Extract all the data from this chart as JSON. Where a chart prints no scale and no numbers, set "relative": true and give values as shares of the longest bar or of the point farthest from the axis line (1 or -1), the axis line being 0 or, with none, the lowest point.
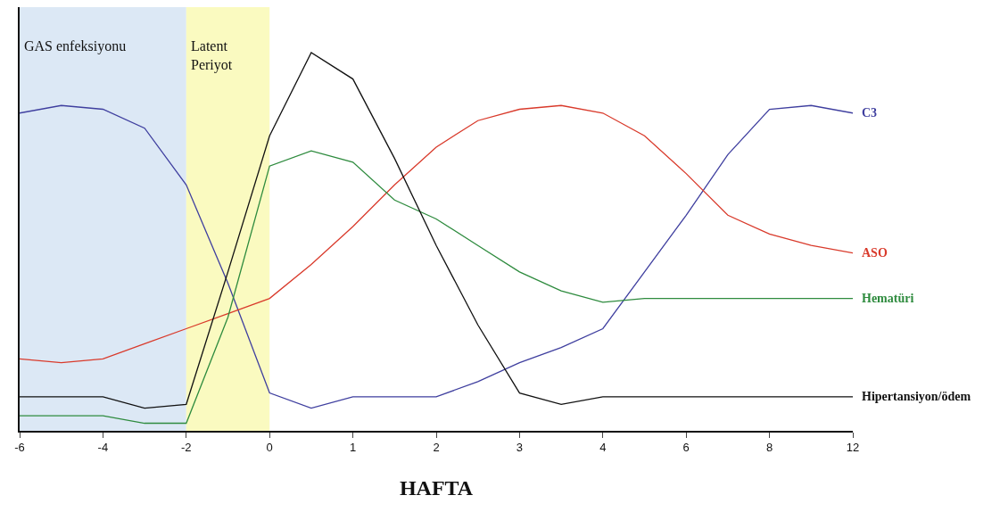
{
  "chart_data": {
    "type": "line",
    "relative": true,
    "xlabel": "HAFTA",
    "categories": [
      "-6",
      null,
      "-4",
      null,
      "-2",
      null,
      "0",
      null,
      "1",
      null,
      "2",
      null,
      "3",
      null,
      "4",
      null,
      "6",
      null,
      "8",
      null,
      "12"
    ],
    "grid": false,
    "legend": false,
    "tick_labels": "x",
    "marker": "none",
    "line_style": "solid",
    "bands": [
      {
        "axis": "x",
        "from": "-6",
        "to": "-2",
        "label": "GAS enfeksiyonu",
        "color": "#dce8f5"
      },
      {
        "axis": "x",
        "from": "-2",
        "to": "0",
        "label": "Latent\nPeriyot",
        "color": "#fafac0"
      }
    ],
    "series": [
      {
        "name": "C3",
        "color": "#3f3f9f",
        "values": [
          0.84,
          0.86,
          0.85,
          0.8,
          0.65,
          0.39,
          0.1,
          0.06,
          0.09,
          0.09,
          0.09,
          0.13,
          0.18,
          0.22,
          0.27,
          0.42,
          0.57,
          0.73,
          0.85,
          0.86,
          0.84
        ]
      },
      {
        "name": "ASO",
        "color": "#d93a2b",
        "values": [
          0.19,
          0.18,
          0.19,
          0.23,
          0.27,
          0.31,
          0.35,
          0.44,
          0.54,
          0.65,
          0.75,
          0.82,
          0.85,
          0.86,
          0.84,
          0.78,
          0.68,
          0.57,
          0.52,
          0.49,
          0.47
        ]
      },
      {
        "name": "Hematüri",
        "color": "#2e8b3e",
        "values": [
          0.04,
          0.04,
          0.04,
          0.02,
          0.02,
          0.3,
          0.7,
          0.74,
          0.71,
          0.61,
          0.56,
          0.49,
          0.42,
          0.37,
          0.34,
          0.35,
          0.35,
          0.35,
          0.35,
          0.35,
          0.35
        ]
      },
      {
        "name": "Hipertansiyon/ödem",
        "color": "#111111",
        "values": [
          0.09,
          0.09,
          0.09,
          0.06,
          0.07,
          0.42,
          0.78,
          1.0,
          0.93,
          0.72,
          0.49,
          0.28,
          0.1,
          0.07,
          0.09,
          0.09,
          0.09,
          0.09,
          0.09,
          0.09,
          0.09
        ]
      }
    ]
  }
}
